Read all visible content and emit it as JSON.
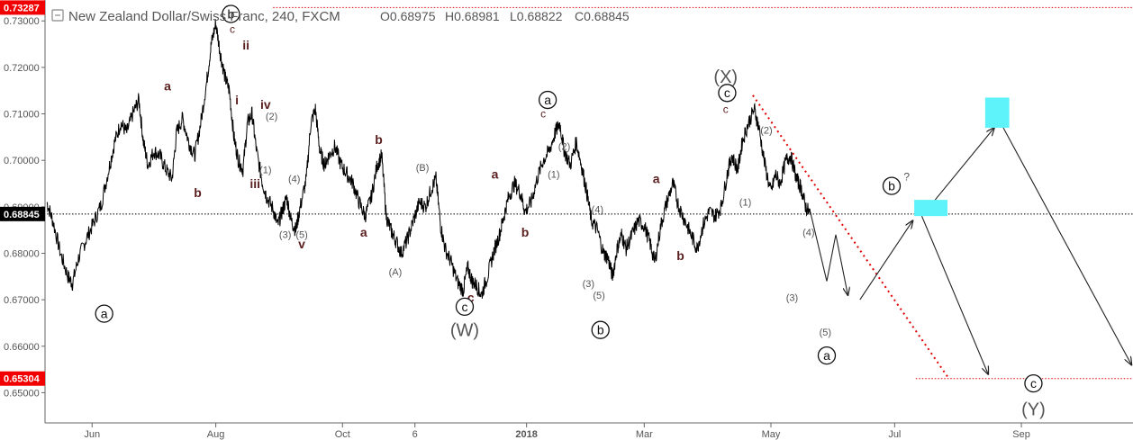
{
  "header": {
    "title": "New Zealand Dollar/Swiss Franc, 240, FXCM",
    "ohlc": [
      {
        "key": "O",
        "value": "0.68975"
      },
      {
        "key": "H",
        "value": "0.68981"
      },
      {
        "key": "L",
        "value": "0.68822"
      },
      {
        "key": "C",
        "value": "0.68845"
      }
    ]
  },
  "colors": {
    "price_line": "#000000",
    "tag_red": "#f20000",
    "tag_black": "#000000",
    "wave_label": "#5b1f1f",
    "target_box": "#5ef3fb",
    "trend_dotted": "#e00000"
  },
  "chart_data": {
    "type": "line",
    "series_name": "",
    "ylim": [
      0.6435,
      0.7345
    ],
    "yticks": [
      "0.65000",
      "0.66000",
      "0.67000",
      "0.68000",
      "0.69000",
      "0.70000",
      "0.71000",
      "0.72000",
      "0.73000"
    ],
    "xlim": [
      0,
      36
    ],
    "xticks": [
      {
        "label": "Jun",
        "x": 1.5
      },
      {
        "label": "Aug",
        "x": 5.6
      },
      {
        "label": "Oct",
        "x": 9.8
      },
      {
        "label": "6",
        "x": 12.2
      },
      {
        "label": "2018",
        "x": 15.9
      },
      {
        "label": "Mar",
        "x": 19.8
      },
      {
        "label": "May",
        "x": 24.0
      },
      {
        "label": "Jul",
        "x": 28.1
      },
      {
        "label": "Sep",
        "x": 32.3
      }
    ],
    "price_tags": [
      {
        "value": 0.73287,
        "label": "0.73287",
        "color": "#f20000"
      },
      {
        "value": 0.68845,
        "label": "0.68845",
        "color": "#000000"
      },
      {
        "value": 0.65304,
        "label": "0.65304",
        "color": "#f20000"
      }
    ],
    "hlines": [
      {
        "value": 0.73287,
        "style": "dotted",
        "color": "#e00000",
        "x_from": 7.5,
        "x_to": 36
      },
      {
        "value": 0.68845,
        "style": "dotted",
        "color": "#000000",
        "x_from": 0,
        "x_to": 36
      },
      {
        "value": 0.65304,
        "style": "dotted",
        "color": "#e00000",
        "x_from": 28.8,
        "x_to": 36
      }
    ],
    "price_path": [
      [
        0.0,
        0.691
      ],
      [
        0.2,
        0.687
      ],
      [
        0.45,
        0.68
      ],
      [
        0.7,
        0.675
      ],
      [
        0.85,
        0.6735
      ],
      [
        1.05,
        0.679
      ],
      [
        1.3,
        0.683
      ],
      [
        1.55,
        0.6865
      ],
      [
        1.8,
        0.6905
      ],
      [
        2.05,
        0.698
      ],
      [
        2.25,
        0.704
      ],
      [
        2.45,
        0.708
      ],
      [
        2.65,
        0.706
      ],
      [
        2.85,
        0.71
      ],
      [
        3.05,
        0.713
      ],
      [
        3.2,
        0.704
      ],
      [
        3.35,
        0.699
      ],
      [
        3.55,
        0.702
      ],
      [
        3.75,
        0.701
      ],
      [
        3.95,
        0.698
      ],
      [
        4.15,
        0.696
      ],
      [
        4.3,
        0.706
      ],
      [
        4.5,
        0.709
      ],
      [
        4.7,
        0.704
      ],
      [
        4.9,
        0.701
      ],
      [
        5.1,
        0.708
      ],
      [
        5.3,
        0.717
      ],
      [
        5.45,
        0.725
      ],
      [
        5.6,
        0.7295
      ],
      [
        5.75,
        0.723
      ],
      [
        5.9,
        0.718
      ],
      [
        6.05,
        0.715
      ],
      [
        6.2,
        0.705
      ],
      [
        6.35,
        0.7
      ],
      [
        6.5,
        0.698
      ],
      [
        6.65,
        0.708
      ],
      [
        6.8,
        0.71
      ],
      [
        6.95,
        0.702
      ],
      [
        7.15,
        0.695
      ],
      [
        7.3,
        0.692
      ],
      [
        7.5,
        0.6895
      ],
      [
        7.65,
        0.686
      ],
      [
        7.8,
        0.689
      ],
      [
        7.95,
        0.692
      ],
      [
        8.1,
        0.687
      ],
      [
        8.25,
        0.685
      ],
      [
        8.4,
        0.69
      ],
      [
        8.6,
        0.696
      ],
      [
        8.75,
        0.708
      ],
      [
        8.9,
        0.711
      ],
      [
        9.05,
        0.702
      ],
      [
        9.2,
        0.699
      ],
      [
        9.35,
        0.701
      ],
      [
        9.55,
        0.703
      ],
      [
        9.75,
        0.699
      ],
      [
        9.95,
        0.697
      ],
      [
        10.15,
        0.695
      ],
      [
        10.35,
        0.691
      ],
      [
        10.55,
        0.688
      ],
      [
        10.75,
        0.692
      ],
      [
        10.95,
        0.699
      ],
      [
        11.1,
        0.701
      ],
      [
        11.25,
        0.688
      ],
      [
        11.4,
        0.685
      ],
      [
        11.55,
        0.683
      ],
      [
        11.75,
        0.68
      ],
      [
        11.95,
        0.683
      ],
      [
        12.15,
        0.687
      ],
      [
        12.35,
        0.691
      ],
      [
        12.55,
        0.69
      ],
      [
        12.75,
        0.694
      ],
      [
        12.9,
        0.696
      ],
      [
        13.05,
        0.686
      ],
      [
        13.2,
        0.681
      ],
      [
        13.4,
        0.678
      ],
      [
        13.6,
        0.674
      ],
      [
        13.8,
        0.672
      ],
      [
        13.95,
        0.677
      ],
      [
        14.1,
        0.674
      ],
      [
        14.25,
        0.673
      ],
      [
        14.4,
        0.671
      ],
      [
        14.6,
        0.675
      ],
      [
        14.8,
        0.68
      ],
      [
        15.0,
        0.684
      ],
      [
        15.15,
        0.688
      ],
      [
        15.3,
        0.692
      ],
      [
        15.5,
        0.695
      ],
      [
        15.7,
        0.693
      ],
      [
        15.85,
        0.689
      ],
      [
        16.05,
        0.691
      ],
      [
        16.25,
        0.696
      ],
      [
        16.45,
        0.7
      ],
      [
        16.65,
        0.702
      ],
      [
        16.85,
        0.706
      ],
      [
        17.0,
        0.708
      ],
      [
        17.15,
        0.702
      ],
      [
        17.35,
        0.699
      ],
      [
        17.55,
        0.704
      ],
      [
        17.75,
        0.698
      ],
      [
        17.9,
        0.693
      ],
      [
        18.05,
        0.687
      ],
      [
        18.25,
        0.685
      ],
      [
        18.45,
        0.68
      ],
      [
        18.6,
        0.679
      ],
      [
        18.75,
        0.675
      ],
      [
        18.9,
        0.681
      ],
      [
        19.05,
        0.684
      ],
      [
        19.2,
        0.681
      ],
      [
        19.4,
        0.684
      ],
      [
        19.6,
        0.687
      ],
      [
        19.8,
        0.686
      ],
      [
        20.0,
        0.682
      ],
      [
        20.15,
        0.678
      ],
      [
        20.35,
        0.686
      ],
      [
        20.55,
        0.691
      ],
      [
        20.75,
        0.695
      ],
      [
        20.95,
        0.69
      ],
      [
        21.15,
        0.687
      ],
      [
        21.35,
        0.684
      ],
      [
        21.55,
        0.681
      ],
      [
        21.75,
        0.686
      ],
      [
        21.95,
        0.689
      ],
      [
        22.15,
        0.688
      ],
      [
        22.35,
        0.69
      ],
      [
        22.55,
        0.697
      ],
      [
        22.7,
        0.701
      ],
      [
        22.9,
        0.698
      ],
      [
        23.05,
        0.704
      ],
      [
        23.25,
        0.708
      ],
      [
        23.45,
        0.711
      ],
      [
        23.6,
        0.707
      ],
      [
        23.8,
        0.699
      ],
      [
        24.0,
        0.693
      ],
      [
        24.15,
        0.697
      ],
      [
        24.3,
        0.695
      ],
      [
        24.5,
        0.7
      ],
      [
        24.65,
        0.701
      ],
      [
        24.85,
        0.696
      ],
      [
        25.0,
        0.694
      ],
      [
        25.15,
        0.69
      ],
      [
        25.3,
        0.6885
      ]
    ],
    "projection_paths": [
      {
        "points": [
          [
            25.3,
            0.689
          ],
          [
            25.85,
            0.674
          ],
          [
            26.15,
            0.684
          ],
          [
            26.55,
            0.671
          ]
        ],
        "arrow": true
      },
      {
        "points": [
          [
            26.95,
            0.67
          ],
          [
            28.7,
            0.687
          ]
        ],
        "arrow": true
      },
      {
        "points": [
          [
            29.0,
            0.688
          ],
          [
            31.2,
            0.654
          ]
        ],
        "arrow": true
      },
      {
        "points": [
          [
            29.0,
            0.688
          ],
          [
            31.4,
            0.707
          ]
        ],
        "arrow": true
      },
      {
        "points": [
          [
            31.7,
            0.707
          ],
          [
            35.95,
            0.656
          ]
        ],
        "arrow": true
      }
    ],
    "trend_line": {
      "from": [
        23.4,
        0.714
      ],
      "to": [
        29.9,
        0.653
      ],
      "color": "#e00000",
      "style": "dotted"
    },
    "target_boxes": [
      {
        "x0": 28.75,
        "x1": 29.85,
        "y0": 0.688,
        "y1": 0.6915
      },
      {
        "x0": 31.1,
        "x1": 31.9,
        "y0": 0.707,
        "y1": 0.7135
      }
    ],
    "wave_labels": [
      {
        "text": "a",
        "x": 1.9,
        "y": 0.667,
        "circle": true,
        "color": "#111111",
        "size": 14
      },
      {
        "text": "a",
        "x": 4.0,
        "y": 0.716,
        "circle": false,
        "color": "#5b1f1f",
        "size": 14,
        "bold": true
      },
      {
        "text": "b",
        "x": 5.0,
        "y": 0.693,
        "circle": false,
        "color": "#5b1f1f",
        "size": 14,
        "bold": true
      },
      {
        "text": "b",
        "x": 6.1,
        "y": 0.7315,
        "circle": true,
        "color": "#111111",
        "size": 14
      },
      {
        "text": "c",
        "x": 6.15,
        "y": 0.7282,
        "circle": false,
        "color": "#5b1f1f",
        "size": 12
      },
      {
        "text": "ii",
        "x": 6.6,
        "y": 0.7248,
        "circle": false,
        "color": "#5b1f1f",
        "size": 14,
        "bold": true
      },
      {
        "text": "i",
        "x": 6.3,
        "y": 0.713,
        "circle": false,
        "color": "#5b1f1f",
        "size": 14,
        "bold": true
      },
      {
        "text": "iv",
        "x": 7.25,
        "y": 0.712,
        "circle": false,
        "color": "#5b1f1f",
        "size": 14,
        "bold": true
      },
      {
        "text": "(2)",
        "x": 7.45,
        "y": 0.7095,
        "circle": false,
        "color": "#555555",
        "size": 11
      },
      {
        "text": "(1)",
        "x": 7.25,
        "y": 0.698,
        "circle": false,
        "color": "#555555",
        "size": 11
      },
      {
        "text": "iii",
        "x": 6.9,
        "y": 0.695,
        "circle": false,
        "color": "#5b1f1f",
        "size": 14,
        "bold": true
      },
      {
        "text": "(4)",
        "x": 8.2,
        "y": 0.696,
        "circle": false,
        "color": "#555555",
        "size": 11
      },
      {
        "text": "(3)",
        "x": 7.9,
        "y": 0.684,
        "circle": false,
        "color": "#555555",
        "size": 11
      },
      {
        "text": "(5)",
        "x": 8.45,
        "y": 0.684,
        "circle": false,
        "color": "#555555",
        "size": 11
      },
      {
        "text": "v",
        "x": 8.45,
        "y": 0.682,
        "circle": false,
        "color": "#5b1f1f",
        "size": 14,
        "bold": true
      },
      {
        "text": "b",
        "x": 11.0,
        "y": 0.7045,
        "circle": false,
        "color": "#5b1f1f",
        "size": 14,
        "bold": true
      },
      {
        "text": "a",
        "x": 10.5,
        "y": 0.6845,
        "circle": false,
        "color": "#5b1f1f",
        "size": 14,
        "bold": true
      },
      {
        "text": "(B)",
        "x": 12.45,
        "y": 0.6985,
        "circle": false,
        "color": "#555555",
        "size": 11
      },
      {
        "text": "(A)",
        "x": 11.55,
        "y": 0.676,
        "circle": false,
        "color": "#555555",
        "size": 11
      },
      {
        "text": "c",
        "x": 14.05,
        "y": 0.6705,
        "circle": false,
        "color": "#5b1f1f",
        "size": 14,
        "bold": true
      },
      {
        "text": "c",
        "x": 13.85,
        "y": 0.6685,
        "circle": true,
        "color": "#111111",
        "size": 14
      },
      {
        "text": "(W)",
        "x": 13.85,
        "y": 0.6635,
        "circle": false,
        "color": "#555555",
        "size": 20
      },
      {
        "text": "a",
        "x": 14.85,
        "y": 0.697,
        "circle": false,
        "color": "#5b1f1f",
        "size": 14,
        "bold": true
      },
      {
        "text": "b",
        "x": 15.85,
        "y": 0.6845,
        "circle": false,
        "color": "#5b1f1f",
        "size": 14,
        "bold": true
      },
      {
        "text": "a",
        "x": 16.6,
        "y": 0.713,
        "circle": true,
        "color": "#111111",
        "size": 14
      },
      {
        "text": "c",
        "x": 16.45,
        "y": 0.71,
        "circle": false,
        "color": "#5b1f1f",
        "size": 12
      },
      {
        "text": "(2)",
        "x": 17.15,
        "y": 0.703,
        "circle": false,
        "color": "#555555",
        "size": 11
      },
      {
        "text": "(1)",
        "x": 16.8,
        "y": 0.697,
        "circle": false,
        "color": "#555555",
        "size": 11
      },
      {
        "text": "(4)",
        "x": 18.25,
        "y": 0.6895,
        "circle": false,
        "color": "#555555",
        "size": 11
      },
      {
        "text": "(3)",
        "x": 17.95,
        "y": 0.6735,
        "circle": false,
        "color": "#555555",
        "size": 11
      },
      {
        "text": "(5)",
        "x": 18.3,
        "y": 0.671,
        "circle": false,
        "color": "#555555",
        "size": 11
      },
      {
        "text": "b",
        "x": 18.35,
        "y": 0.6635,
        "circle": true,
        "color": "#111111",
        "size": 14
      },
      {
        "text": "a",
        "x": 20.2,
        "y": 0.696,
        "circle": false,
        "color": "#5b1f1f",
        "size": 14,
        "bold": true
      },
      {
        "text": "b",
        "x": 21.0,
        "y": 0.6795,
        "circle": false,
        "color": "#5b1f1f",
        "size": 14,
        "bold": true
      },
      {
        "text": "(X)",
        "x": 22.5,
        "y": 0.718,
        "circle": false,
        "color": "#555555",
        "size": 20
      },
      {
        "text": "c",
        "x": 22.55,
        "y": 0.7145,
        "circle": true,
        "color": "#111111",
        "size": 14
      },
      {
        "text": "c",
        "x": 22.5,
        "y": 0.711,
        "circle": false,
        "color": "#5b1f1f",
        "size": 12
      },
      {
        "text": "(2)",
        "x": 23.85,
        "y": 0.7065,
        "circle": false,
        "color": "#555555",
        "size": 11
      },
      {
        "text": "(1)",
        "x": 23.15,
        "y": 0.691,
        "circle": false,
        "color": "#555555",
        "size": 11
      },
      {
        "text": "(4)",
        "x": 25.25,
        "y": 0.6845,
        "circle": false,
        "color": "#555555",
        "size": 11
      },
      {
        "text": "(3)",
        "x": 24.7,
        "y": 0.6705,
        "circle": false,
        "color": "#555555",
        "size": 11
      },
      {
        "text": "(5)",
        "x": 25.8,
        "y": 0.663,
        "circle": false,
        "color": "#555555",
        "size": 11
      },
      {
        "text": "a",
        "x": 25.85,
        "y": 0.658,
        "circle": true,
        "color": "#111111",
        "size": 14
      },
      {
        "text": "?",
        "x": 28.5,
        "y": 0.6965,
        "circle": false,
        "color": "#555555",
        "size": 12
      },
      {
        "text": "b",
        "x": 28.0,
        "y": 0.6945,
        "circle": true,
        "color": "#111111",
        "size": 14
      },
      {
        "text": "c",
        "x": 32.7,
        "y": 0.652,
        "circle": true,
        "color": "#111111",
        "size": 14
      },
      {
        "text": "(Y)",
        "x": 32.7,
        "y": 0.6465,
        "circle": false,
        "color": "#555555",
        "size": 20
      }
    ]
  }
}
